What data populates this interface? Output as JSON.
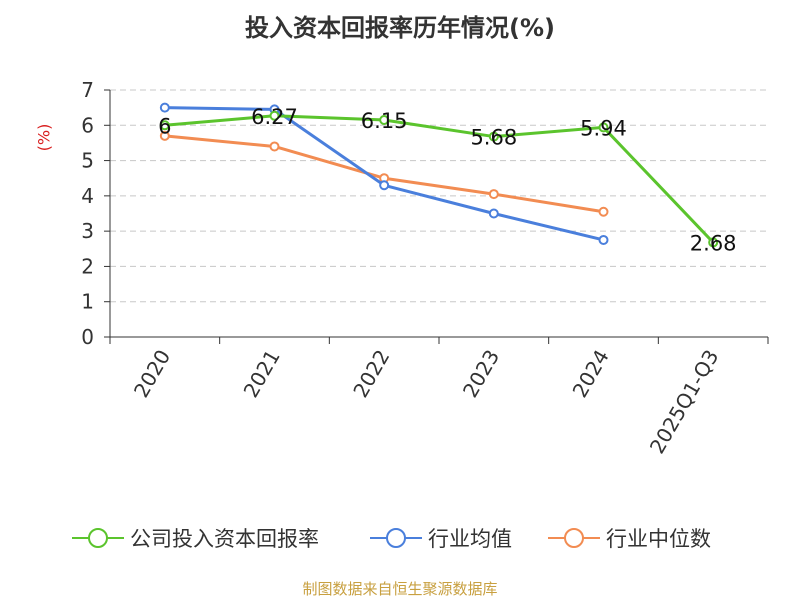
{
  "colors": {
    "company": "#5bc42d",
    "avg": "#4a7fdc",
    "median": "#f28c52",
    "source": "#c8a040",
    "unit": "#d92020"
  },
  "chart_data": {
    "type": "line",
    "title": "投入资本回报率历年情况(%)",
    "ylabel": "(%)",
    "ylim": [
      0,
      7
    ],
    "yticks": [
      "0",
      "1",
      "2",
      "3",
      "4",
      "5",
      "6",
      "7"
    ],
    "categories": [
      "2020",
      "2021",
      "2022",
      "2023",
      "2024",
      "2025Q1-Q3"
    ],
    "grid": true,
    "legend_position": "bottom",
    "series": [
      {
        "name": "公司投入资本回报率",
        "values": [
          6,
          6.27,
          6.15,
          5.68,
          5.94,
          2.68
        ],
        "labels": [
          "6",
          "6.27",
          "6.15",
          "5.68",
          "5.94",
          "2.68"
        ]
      },
      {
        "name": "行业均值",
        "values": [
          6.5,
          6.45,
          4.3,
          3.5,
          2.75,
          null
        ]
      },
      {
        "name": "行业中位数",
        "values": [
          5.7,
          5.4,
          4.5,
          4.05,
          3.55,
          null
        ]
      }
    ]
  },
  "source": "制图数据来自恒生聚源数据库"
}
